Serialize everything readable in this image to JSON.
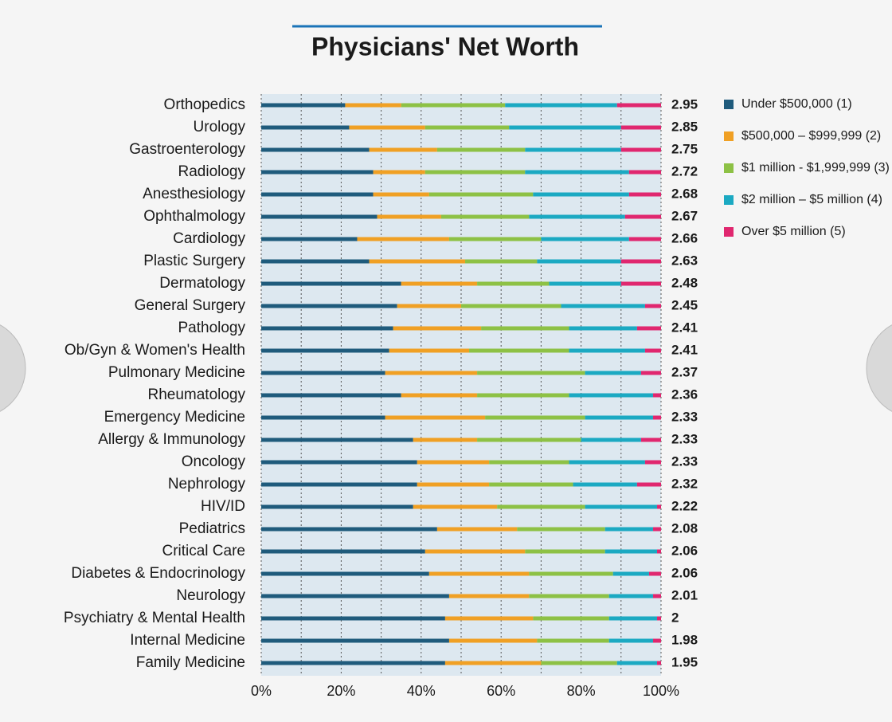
{
  "chart_data": {
    "type": "stacked-bar-horizontal",
    "title": "Physicians' Net Worth",
    "categories": [
      "Orthopedics",
      "Urology",
      "Gastroenterology",
      "Radiology",
      "Anesthesiology",
      "Ophthalmology",
      "Cardiology",
      "Plastic Surgery",
      "Dermatology",
      "General Surgery",
      "Pathology",
      "Ob/Gyn & Women's Health",
      "Pulmonary Medicine",
      "Rheumatology",
      "Emergency Medicine",
      "Allergy & Immunology",
      "Oncology",
      "Nephrology",
      "HIV/ID",
      "Pediatrics",
      "Critical Care",
      "Diabetes & Endocrinology",
      "Neurology",
      "Psychiatry & Mental Health",
      "Internal Medicine",
      "Family Medicine"
    ],
    "series": [
      {
        "name": "Under $500,000 (1)",
        "color": "#1f5b7c",
        "values": [
          21,
          22,
          27,
          28,
          28,
          29,
          24,
          27,
          35,
          34,
          33,
          32,
          31,
          35,
          31,
          38,
          39,
          39,
          38,
          44,
          41,
          42,
          47,
          46,
          47,
          46
        ]
      },
      {
        "name": "$500,000 – $999,999 (2)",
        "color": "#f0a024",
        "values": [
          14,
          19,
          17,
          13,
          14,
          16,
          23,
          24,
          19,
          16,
          22,
          20,
          23,
          19,
          25,
          16,
          18,
          18,
          21,
          20,
          25,
          25,
          20,
          22,
          22,
          24
        ]
      },
      {
        "name": "$1 million - $1,999,999 (3)",
        "color": "#8dc145",
        "values": [
          26,
          21,
          22,
          25,
          26,
          22,
          23,
          18,
          18,
          25,
          22,
          25,
          27,
          23,
          25,
          26,
          20,
          21,
          22,
          22,
          20,
          21,
          20,
          19,
          18,
          19
        ]
      },
      {
        "name": "$2 million – $5 million (4)",
        "color": "#1ba9c2",
        "values": [
          28,
          28,
          24,
          26,
          24,
          24,
          22,
          21,
          18,
          21,
          17,
          19,
          14,
          21,
          17,
          15,
          19,
          16,
          18,
          12,
          13,
          9,
          11,
          12,
          11,
          10
        ]
      },
      {
        "name": "Over $5 million (5)",
        "color": "#e0276f",
        "values": [
          11,
          10,
          10,
          8,
          8,
          9,
          8,
          10,
          10,
          4,
          6,
          4,
          5,
          2,
          2,
          5,
          4,
          6,
          1,
          2,
          1,
          3,
          2,
          1,
          2,
          1
        ]
      }
    ],
    "scores": [
      2.95,
      2.85,
      2.75,
      2.72,
      2.68,
      2.67,
      2.66,
      2.63,
      2.48,
      2.45,
      2.41,
      2.41,
      2.37,
      2.36,
      2.33,
      2.33,
      2.33,
      2.32,
      2.22,
      2.08,
      2.06,
      2.06,
      2.01,
      2,
      1.98,
      1.95
    ],
    "xlim": [
      0,
      100
    ],
    "xticks": [
      {
        "value": 0,
        "label": "0%"
      },
      {
        "value": 20,
        "label": "20%"
      },
      {
        "value": 40,
        "label": "40%"
      },
      {
        "value": 60,
        "label": "60%"
      },
      {
        "value": 80,
        "label": "80%"
      },
      {
        "value": 100,
        "label": "100%"
      }
    ],
    "minor_xticks": [
      10,
      30,
      50,
      70,
      90
    ],
    "grid": true,
    "legend": "right"
  }
}
